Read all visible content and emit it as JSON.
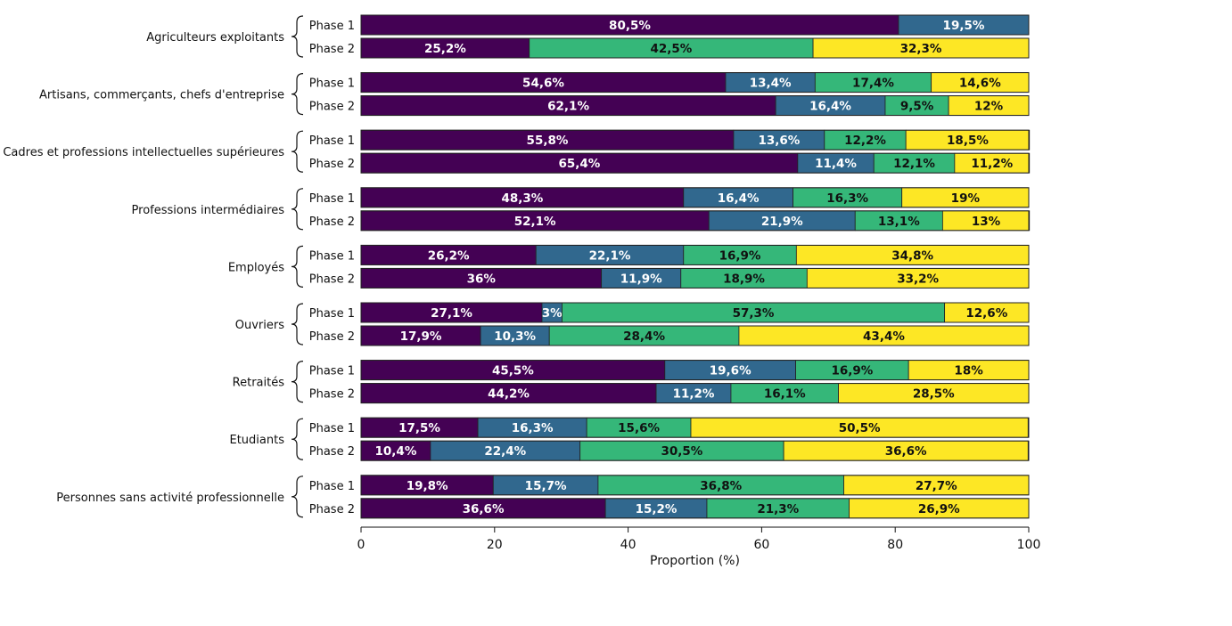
{
  "chart_data": {
    "type": "bar",
    "orientation": "horizontal",
    "stacked": true,
    "xlabel": "Proportion (%)",
    "xlim": [
      0,
      100
    ],
    "xticks": [
      0,
      20,
      40,
      60,
      80,
      100
    ],
    "grid": false,
    "legend": "none",
    "series_colors": [
      "#440154",
      "#31688e",
      "#35b779",
      "#fde725"
    ],
    "label_colors": [
      "#ffffff",
      "#ffffff",
      "#111111",
      "#111111"
    ],
    "groups": [
      {
        "name": "Agriculteurs exploitants",
        "bars": [
          {
            "label": "Phase 1",
            "values": [
              80.5,
              19.5,
              0,
              0
            ],
            "labels": [
              "80,5%",
              "19,5%",
              "",
              ""
            ]
          },
          {
            "label": "Phase 2",
            "values": [
              25.2,
              0,
              42.5,
              32.3
            ],
            "labels": [
              "25,2%",
              "",
              "42,5%",
              "32,3%"
            ]
          }
        ]
      },
      {
        "name": "Artisans, commerçants, chefs d'entreprise",
        "bars": [
          {
            "label": "Phase 1",
            "values": [
              54.6,
              13.4,
              17.4,
              14.6
            ],
            "labels": [
              "54,6%",
              "13,4%",
              "17,4%",
              "14,6%"
            ]
          },
          {
            "label": "Phase 2",
            "values": [
              62.1,
              16.4,
              9.5,
              12
            ],
            "labels": [
              "62,1%",
              "16,4%",
              "9,5%",
              "12%"
            ]
          }
        ]
      },
      {
        "name": "Cadres et professions intellectuelles supérieures",
        "bars": [
          {
            "label": "Phase 1",
            "values": [
              55.8,
              13.6,
              12.2,
              18.5
            ],
            "labels": [
              "55,8%",
              "13,6%",
              "12,2%",
              "18,5%"
            ]
          },
          {
            "label": "Phase 2",
            "values": [
              65.4,
              11.4,
              12.1,
              11.2
            ],
            "labels": [
              "65,4%",
              "11,4%",
              "12,1%",
              "11,2%"
            ]
          }
        ]
      },
      {
        "name": "Professions intermédiaires",
        "bars": [
          {
            "label": "Phase 1",
            "values": [
              48.3,
              16.4,
              16.3,
              19
            ],
            "labels": [
              "48,3%",
              "16,4%",
              "16,3%",
              "19%"
            ]
          },
          {
            "label": "Phase 2",
            "values": [
              52.1,
              21.9,
              13.1,
              13
            ],
            "labels": [
              "52,1%",
              "21,9%",
              "13,1%",
              "13%"
            ]
          }
        ]
      },
      {
        "name": "Employés",
        "bars": [
          {
            "label": "Phase 1",
            "values": [
              26.2,
              22.1,
              16.9,
              34.8
            ],
            "labels": [
              "26,2%",
              "22,1%",
              "16,9%",
              "34,8%"
            ]
          },
          {
            "label": "Phase 2",
            "values": [
              36,
              11.9,
              18.9,
              33.2
            ],
            "labels": [
              "36%",
              "11,9%",
              "18,9%",
              "33,2%"
            ]
          }
        ]
      },
      {
        "name": "Ouvriers",
        "bars": [
          {
            "label": "Phase 1",
            "values": [
              27.1,
              3,
              57.3,
              12.6
            ],
            "labels": [
              "27,1%",
              "3%",
              "57,3%",
              "12,6%"
            ]
          },
          {
            "label": "Phase 2",
            "values": [
              17.9,
              10.3,
              28.4,
              43.4
            ],
            "labels": [
              "17,9%",
              "10,3%",
              "28,4%",
              "43,4%"
            ]
          }
        ]
      },
      {
        "name": "Retraités",
        "bars": [
          {
            "label": "Phase 1",
            "values": [
              45.5,
              19.6,
              16.9,
              18
            ],
            "labels": [
              "45,5%",
              "19,6%",
              "16,9%",
              "18%"
            ]
          },
          {
            "label": "Phase 2",
            "values": [
              44.2,
              11.2,
              16.1,
              28.5
            ],
            "labels": [
              "44,2%",
              "11,2%",
              "16,1%",
              "28,5%"
            ]
          }
        ]
      },
      {
        "name": "Etudiants",
        "bars": [
          {
            "label": "Phase 1",
            "values": [
              17.5,
              16.3,
              15.6,
              50.5
            ],
            "labels": [
              "17,5%",
              "16,3%",
              "15,6%",
              "50,5%"
            ]
          },
          {
            "label": "Phase 2",
            "values": [
              10.4,
              22.4,
              30.5,
              36.6
            ],
            "labels": [
              "10,4%",
              "22,4%",
              "30,5%",
              "36,6%"
            ]
          }
        ]
      },
      {
        "name": "Personnes sans activité professionnelle",
        "bars": [
          {
            "label": "Phase 1",
            "values": [
              19.8,
              15.7,
              36.8,
              27.7
            ],
            "labels": [
              "19,8%",
              "15,7%",
              "36,8%",
              "27,7%"
            ]
          },
          {
            "label": "Phase 2",
            "values": [
              36.6,
              15.2,
              21.3,
              26.9
            ],
            "labels": [
              "36,6%",
              "15,2%",
              "21,3%",
              "26,9%"
            ]
          }
        ]
      }
    ]
  }
}
